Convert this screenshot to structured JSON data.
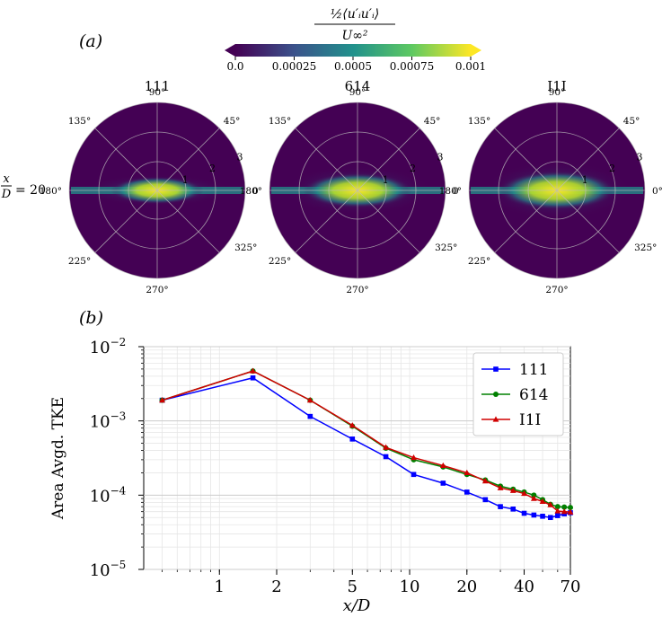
{
  "panel_a": {
    "label": "(a)",
    "colorbar": {
      "label_numerator": "½⟨u′ᵢu′ᵢ⟩",
      "label_denominator": "U∞²",
      "ticks": [
        "0.0",
        "0.00025",
        "0.0005",
        "0.00075",
        "0.001"
      ],
      "colors": [
        "#440154",
        "#3b528b",
        "#21918c",
        "#5ec962",
        "#fde725"
      ]
    },
    "row_label_num": "x",
    "row_label_den": "D",
    "row_label_value": "= 20",
    "angle_labels_set1": [
      "90°",
      "45°",
      "0",
      "325°",
      "270°",
      "225°",
      "180°",
      "135°"
    ],
    "angle_labels_set3": [
      "90°",
      "45°",
      "0°",
      "325°",
      "270°",
      "225°",
      "180°",
      "135°"
    ],
    "radial_labels": [
      "1",
      "2",
      "3"
    ],
    "plots": [
      {
        "title": "111",
        "intensity": 0.55
      },
      {
        "title": "614",
        "intensity": 0.85
      },
      {
        "title": "I1I",
        "intensity": 1.0
      }
    ]
  },
  "panel_b": {
    "label": "(b)"
  },
  "chart_data": {
    "type": "line",
    "xscale": "log",
    "yscale": "log",
    "xlabel": "x/D",
    "ylabel": "Area Avgd. TKE",
    "xlim": [
      0.4,
      70
    ],
    "ylim": [
      1e-05,
      0.01
    ],
    "xticks": [
      1,
      2,
      5,
      10,
      20,
      40,
      70
    ],
    "xtick_labels": [
      "1",
      "2",
      "5",
      "10",
      "20",
      "40",
      "70"
    ],
    "yticks": [
      1e-05,
      0.0001,
      0.001,
      0.01
    ],
    "ytick_base": [
      "10",
      "10",
      "10",
      "10"
    ],
    "ytick_exp": [
      "−5",
      "−4",
      "−3",
      "−2"
    ],
    "legend_position": "top-right",
    "series": [
      {
        "name": "111",
        "color": "#0000ff",
        "marker": "square",
        "x": [
          0.5,
          1.5,
          3,
          5,
          7.5,
          10.5,
          15,
          20,
          25,
          30,
          35,
          40,
          45,
          50,
          55,
          60,
          65,
          70
        ],
        "y": [
          0.0019,
          0.0038,
          0.00115,
          0.00057,
          0.00033,
          0.00019,
          0.000145,
          0.00011,
          8.7e-05,
          7e-05,
          6.5e-05,
          5.7e-05,
          5.4e-05,
          5.2e-05,
          5e-05,
          5.3e-05,
          5.6e-05,
          5.8e-05
        ]
      },
      {
        "name": "614",
        "color": "#008000",
        "marker": "circle",
        "x": [
          0.5,
          1.5,
          3,
          5,
          7.5,
          10.5,
          15,
          20,
          25,
          30,
          35,
          40,
          45,
          50,
          55,
          60,
          65,
          70
        ],
        "y": [
          0.0019,
          0.0047,
          0.0019,
          0.00085,
          0.00043,
          0.0003,
          0.00024,
          0.00019,
          0.00016,
          0.000132,
          0.00012,
          0.00011,
          0.0001,
          8.7e-05,
          7.5e-05,
          7e-05,
          6.9e-05,
          6.8e-05
        ]
      },
      {
        "name": "I1I",
        "color": "#d00000",
        "marker": "triangle",
        "x": [
          0.5,
          1.5,
          3,
          5,
          7.5,
          10.5,
          15,
          20,
          25,
          30,
          35,
          40,
          45,
          50,
          55,
          60,
          65,
          70
        ],
        "y": [
          0.0019,
          0.0047,
          0.0019,
          0.00087,
          0.00044,
          0.00032,
          0.00025,
          0.0002,
          0.000155,
          0.000125,
          0.000115,
          0.000105,
          9e-05,
          8.2e-05,
          7.4e-05,
          6.1e-05,
          6e-05,
          5.9e-05
        ]
      }
    ]
  }
}
